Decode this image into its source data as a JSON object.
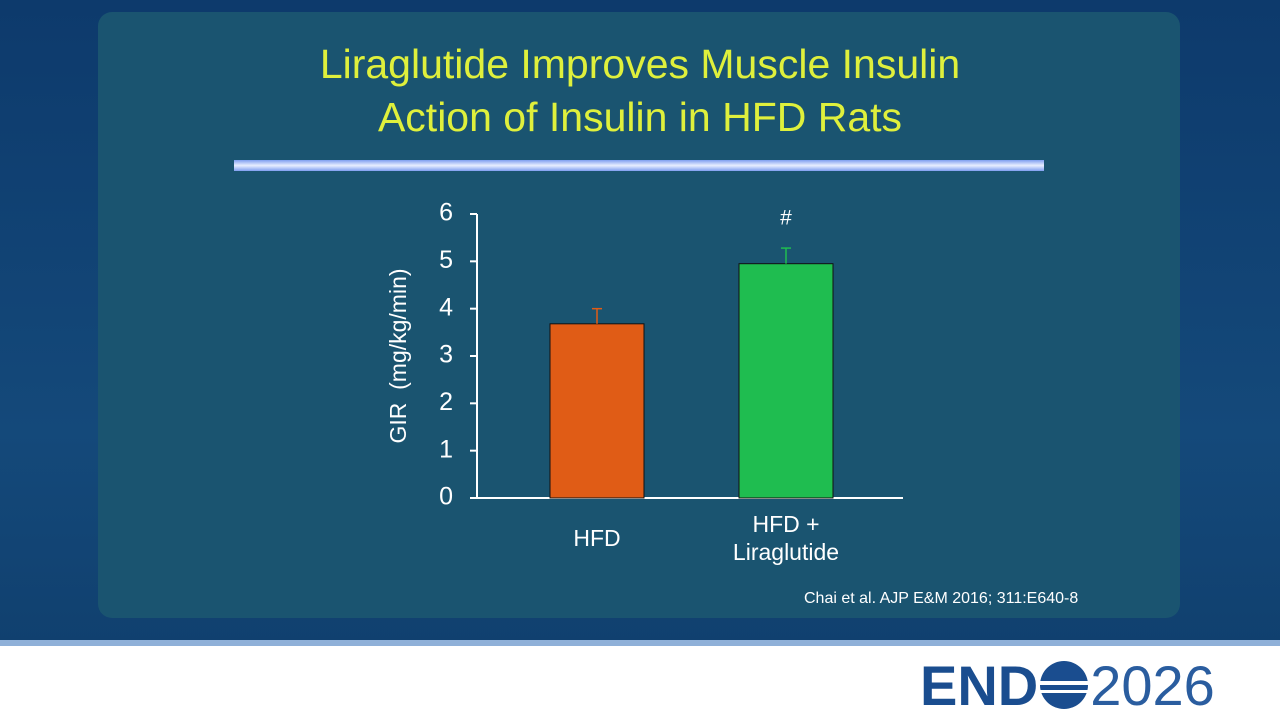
{
  "chart_data": {
    "type": "bar",
    "title": "Liraglutide Improves Muscle Insulin Action of Insulin in HFD Rats",
    "y_label": "GIR  (mg/kg/min)",
    "categories": [
      "HFD",
      "HFD + Liraglutide"
    ],
    "values": [
      3.68,
      4.95
    ],
    "errors": [
      0.32,
      0.33
    ],
    "colors": [
      "#e05c16",
      "#1fbd50"
    ],
    "annotations": [
      null,
      "#"
    ],
    "ylim": [
      0,
      6
    ],
    "yticks": [
      0,
      1,
      2,
      3,
      4,
      5,
      6
    ]
  },
  "citation": "Chai et al. AJP E&M 2016; 311:E640-8",
  "logo": {
    "left": "END",
    "right": "2026"
  }
}
